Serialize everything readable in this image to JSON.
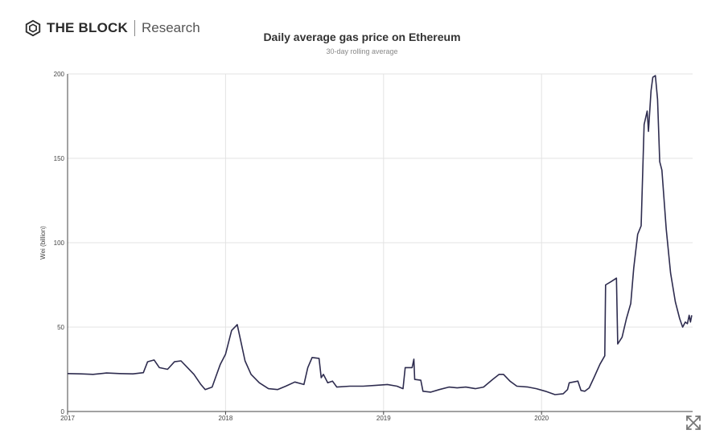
{
  "brand": {
    "name": "THE BLOCK",
    "sub": "Research"
  },
  "colors": {
    "line": "#2e2c4f",
    "grid": "#e3e3e3",
    "axis": "#444444"
  },
  "controls": {
    "expand_icon": "expand-arrows-icon"
  },
  "chart_data": {
    "type": "line",
    "title": "Daily average gas price on Ethereum",
    "subtitle": "30-day rolling average",
    "xlabel": "",
    "ylabel": "Wei (billion)",
    "x_range": [
      "2017-01-01",
      "2020-12-15"
    ],
    "ylim": [
      0,
      200
    ],
    "y_ticks": [
      0,
      50,
      100,
      150,
      200
    ],
    "x_ticks": [
      {
        "date": "2017-01-01",
        "label": "2017"
      },
      {
        "date": "2018-01-01",
        "label": "2018"
      },
      {
        "date": "2019-01-01",
        "label": "2019"
      },
      {
        "date": "2020-01-01",
        "label": "2020"
      }
    ],
    "grid": "vertical at year ticks, horizontal at value ticks",
    "series": [
      {
        "points": [
          [
            "2017-01-01",
            22.5
          ],
          [
            "2017-02-01",
            22.3
          ],
          [
            "2017-03-01",
            22.0
          ],
          [
            "2017-04-01",
            22.8
          ],
          [
            "2017-05-01",
            22.5
          ],
          [
            "2017-06-01",
            22.3
          ],
          [
            "2017-06-25",
            23.0
          ],
          [
            "2017-07-05",
            29.5
          ],
          [
            "2017-07-20",
            30.5
          ],
          [
            "2017-08-01",
            26.0
          ],
          [
            "2017-08-20",
            25.0
          ],
          [
            "2017-09-05",
            29.5
          ],
          [
            "2017-09-20",
            30.0
          ],
          [
            "2017-10-05",
            26.0
          ],
          [
            "2017-10-20",
            22.0
          ],
          [
            "2017-11-05",
            16.0
          ],
          [
            "2017-11-15",
            13.0
          ],
          [
            "2017-12-01",
            14.5
          ],
          [
            "2017-12-10",
            21.0
          ],
          [
            "2017-12-20",
            28.0
          ],
          [
            "2018-01-01",
            34.0
          ],
          [
            "2018-01-15",
            48.0
          ],
          [
            "2018-01-28",
            51.5
          ],
          [
            "2018-02-05",
            42.0
          ],
          [
            "2018-02-15",
            30.0
          ],
          [
            "2018-03-01",
            22.0
          ],
          [
            "2018-03-20",
            17.0
          ],
          [
            "2018-04-10",
            13.5
          ],
          [
            "2018-05-01",
            13.0
          ],
          [
            "2018-05-20",
            15.0
          ],
          [
            "2018-06-10",
            17.5
          ],
          [
            "2018-07-01",
            16.0
          ],
          [
            "2018-07-10",
            26.0
          ],
          [
            "2018-07-20",
            32.0
          ],
          [
            "2018-08-05",
            31.5
          ],
          [
            "2018-08-10",
            20.0
          ],
          [
            "2018-08-15",
            22.0
          ],
          [
            "2018-08-25",
            17.0
          ],
          [
            "2018-09-05",
            18.0
          ],
          [
            "2018-09-15",
            14.5
          ],
          [
            "2018-10-15",
            15.0
          ],
          [
            "2018-11-15",
            15.0
          ],
          [
            "2018-12-15",
            15.5
          ],
          [
            "2019-01-10",
            16.0
          ],
          [
            "2019-02-01",
            15.0
          ],
          [
            "2019-02-15",
            13.5
          ],
          [
            "2019-02-20",
            26.0
          ],
          [
            "2019-03-08",
            26.0
          ],
          [
            "2019-03-12",
            31.0
          ],
          [
            "2019-03-14",
            19.0
          ],
          [
            "2019-03-28",
            18.5
          ],
          [
            "2019-04-02",
            12.0
          ],
          [
            "2019-04-20",
            11.5
          ],
          [
            "2019-05-10",
            13.0
          ],
          [
            "2019-06-01",
            14.5
          ],
          [
            "2019-06-20",
            14.0
          ],
          [
            "2019-07-10",
            14.5
          ],
          [
            "2019-08-01",
            13.5
          ],
          [
            "2019-08-20",
            14.5
          ],
          [
            "2019-09-10",
            19.0
          ],
          [
            "2019-09-25",
            22.0
          ],
          [
            "2019-10-05",
            22.0
          ],
          [
            "2019-10-20",
            18.0
          ],
          [
            "2019-11-05",
            15.0
          ],
          [
            "2019-12-01",
            14.5
          ],
          [
            "2019-12-20",
            13.5
          ],
          [
            "2020-01-10",
            12.0
          ],
          [
            "2020-02-01",
            10.0
          ],
          [
            "2020-02-20",
            10.5
          ],
          [
            "2020-03-01",
            13.0
          ],
          [
            "2020-03-05",
            17.0
          ],
          [
            "2020-03-25",
            18.0
          ],
          [
            "2020-04-01",
            12.5
          ],
          [
            "2020-04-10",
            12.0
          ],
          [
            "2020-04-20",
            14.0
          ],
          [
            "2020-05-01",
            20.0
          ],
          [
            "2020-05-15",
            28.0
          ],
          [
            "2020-05-26",
            33.0
          ],
          [
            "2020-05-28",
            75.0
          ],
          [
            "2020-06-10",
            77.0
          ],
          [
            "2020-06-22",
            79.0
          ],
          [
            "2020-06-25",
            40.0
          ],
          [
            "2020-07-05",
            44.0
          ],
          [
            "2020-07-15",
            55.0
          ],
          [
            "2020-07-25",
            64.0
          ],
          [
            "2020-08-01",
            85.0
          ],
          [
            "2020-08-10",
            105.0
          ],
          [
            "2020-08-18",
            110.0
          ],
          [
            "2020-08-25",
            170.0
          ],
          [
            "2020-09-01",
            178.0
          ],
          [
            "2020-09-04",
            166.0
          ],
          [
            "2020-09-10",
            190.0
          ],
          [
            "2020-09-14",
            198.0
          ],
          [
            "2020-09-20",
            199.0
          ],
          [
            "2020-09-25",
            185.0
          ],
          [
            "2020-09-30",
            148.0
          ],
          [
            "2020-10-05",
            143.0
          ],
          [
            "2020-10-15",
            108.0
          ],
          [
            "2020-10-25",
            82.0
          ],
          [
            "2020-11-05",
            65.0
          ],
          [
            "2020-11-15",
            55.0
          ],
          [
            "2020-11-22",
            50.0
          ],
          [
            "2020-11-28",
            53.0
          ],
          [
            "2020-12-03",
            52.0
          ],
          [
            "2020-12-07",
            57.0
          ],
          [
            "2020-12-10",
            53.0
          ],
          [
            "2020-12-13",
            57.0
          ]
        ]
      }
    ]
  }
}
